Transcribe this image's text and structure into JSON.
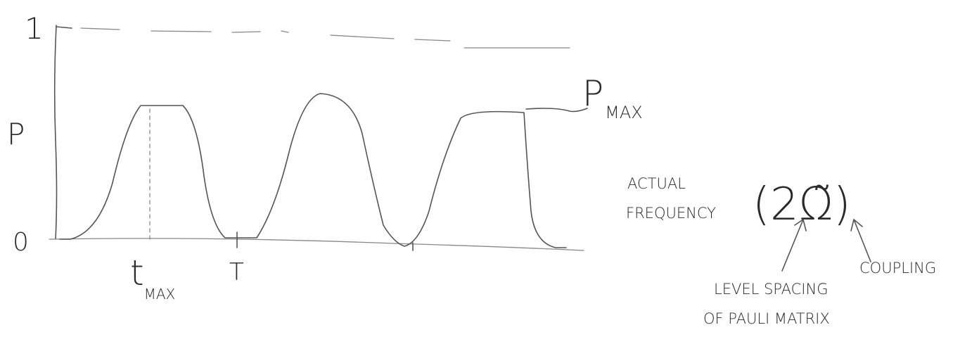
{
  "axis": {
    "top": "1",
    "label": "P",
    "zero": "0"
  },
  "peak_label": {
    "main": "P",
    "sub": "MAX"
  },
  "x_labels": [
    {
      "main": "t",
      "sub": "MAX"
    },
    {
      "main": "T"
    }
  ],
  "annotation": {
    "lead": [
      "ACTUAL",
      "FREQUENCY"
    ],
    "formula": "(2Ω̃)",
    "arrow_labels": [
      [
        "LEVEL SPACING",
        "OF PAULI MATRIX"
      ],
      [
        "COUPLING"
      ]
    ]
  }
}
